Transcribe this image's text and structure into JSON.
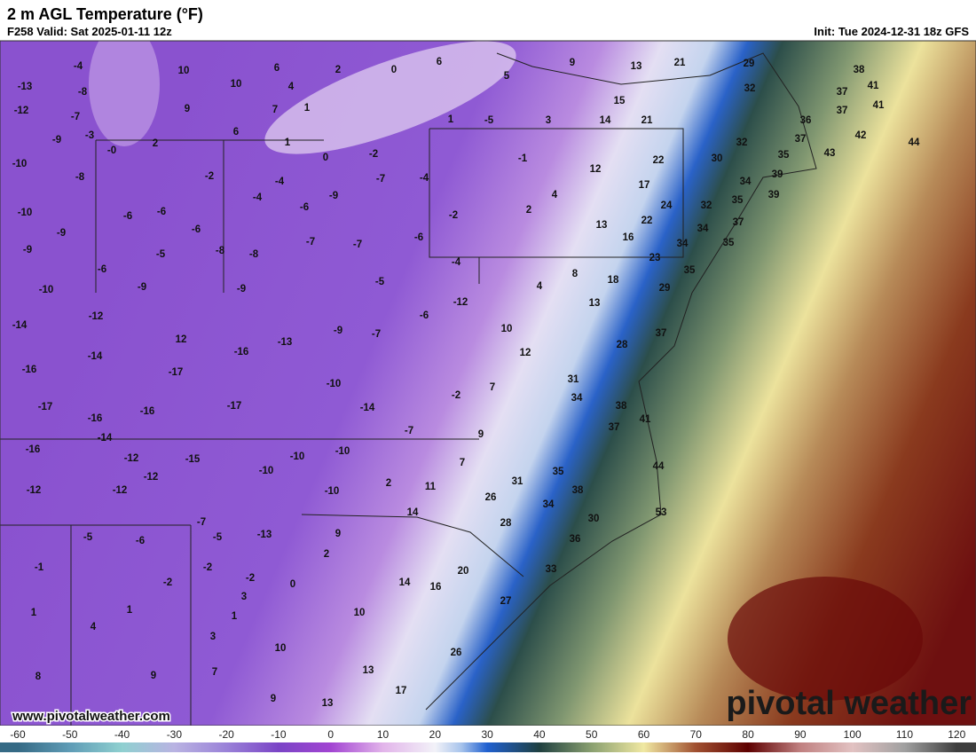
{
  "header": {
    "title": "2 m AGL Temperature (°F)",
    "valid": "F258 Valid: Sat 2025-01-11 12z",
    "init": "Init: Tue 2024-12-31 18z GFS"
  },
  "map": {
    "stations": [
      -4,
      10,
      6,
      2,
      0,
      6,
      9,
      13,
      21,
      29,
      38,
      -13,
      -8,
      10,
      4,
      37,
      41,
      -12,
      -7,
      9,
      7,
      1,
      5,
      15,
      32,
      37,
      41,
      -3,
      6,
      1,
      -5,
      3,
      14,
      21,
      36,
      -9,
      2,
      {
        "value": 0,
        "label": "-0"
      },
      1,
      0,
      -2,
      37,
      42,
      44,
      32,
      -10,
      -2,
      -1,
      12,
      22,
      30,
      35,
      43,
      -8,
      -4,
      -7,
      -4,
      17,
      34,
      39,
      -9,
      -4,
      4,
      32,
      35,
      39,
      -10,
      -6,
      -6,
      -6,
      2,
      -2,
      24,
      22,
      -9,
      -6,
      -7,
      -7,
      -6,
      13,
      16,
      34,
      37,
      -9,
      -5,
      -8,
      -8,
      -4,
      34,
      35,
      -6,
      8,
      23,
      35,
      -10,
      -9,
      -9,
      -5,
      4,
      18,
      29,
      -12,
      -12,
      -6,
      13,
      -14,
      -9,
      -7,
      10,
      37,
      12,
      -13,
      28,
      -14,
      -16,
      12,
      -16,
      -17,
      -10,
      7,
      31,
      -17,
      -16,
      -17,
      -14,
      -2,
      34,
      38,
      41,
      -16,
      -7,
      9,
      37,
      -14,
      -16,
      -12,
      -15,
      -10,
      -10,
      7,
      44,
      -12,
      -10,
      35,
      -12,
      -12,
      -10,
      2,
      11,
      31,
      38,
      26,
      34,
      53,
      14,
      30,
      -7,
      -5,
      -6,
      -5,
      -13,
      9,
      28,
      2,
      -2,
      36,
      -1,
      20,
      33,
      -2,
      -2,
      0,
      14,
      16,
      1,
      3,
      27,
      1,
      1,
      10,
      4,
      3,
      10,
      26,
      8,
      9,
      7,
      13,
      17,
      9,
      13
    ]
  },
  "colorbar": {
    "lim": [
      -63.4,
      123.7
    ],
    "ticks": [
      -60,
      -50,
      -40,
      -30,
      -20,
      -10,
      0,
      10,
      20,
      30,
      40,
      50,
      60,
      70,
      80,
      90,
      100,
      110,
      120
    ],
    "stops": [
      [
        -60,
        "#356a85"
      ],
      [
        -50,
        "#5f9cb6"
      ],
      [
        -40,
        "#8fd0d0"
      ],
      [
        -30,
        "#b9b3e2"
      ],
      [
        -20,
        "#9a82d8"
      ],
      [
        -10,
        "#7a44c6"
      ],
      [
        0,
        "#a244d2"
      ],
      [
        10,
        "#e2b4ea"
      ],
      [
        20,
        "#f2f2f8"
      ],
      [
        25,
        "#a8c4ec"
      ],
      [
        30,
        "#2060d0"
      ],
      [
        40,
        "#1f4040"
      ],
      [
        50,
        "#8aa070"
      ],
      [
        60,
        "#f0e8a2"
      ],
      [
        70,
        "#a05030"
      ],
      [
        80,
        "#5e0000"
      ],
      [
        90,
        "#c08080"
      ],
      [
        100,
        "#e2c2c2"
      ],
      [
        110,
        "#a0a0a0"
      ],
      [
        120,
        "#3e3e3e"
      ]
    ]
  },
  "footer": {
    "url": "www.pivotalweather.com",
    "logo": "pivotal weather"
  }
}
